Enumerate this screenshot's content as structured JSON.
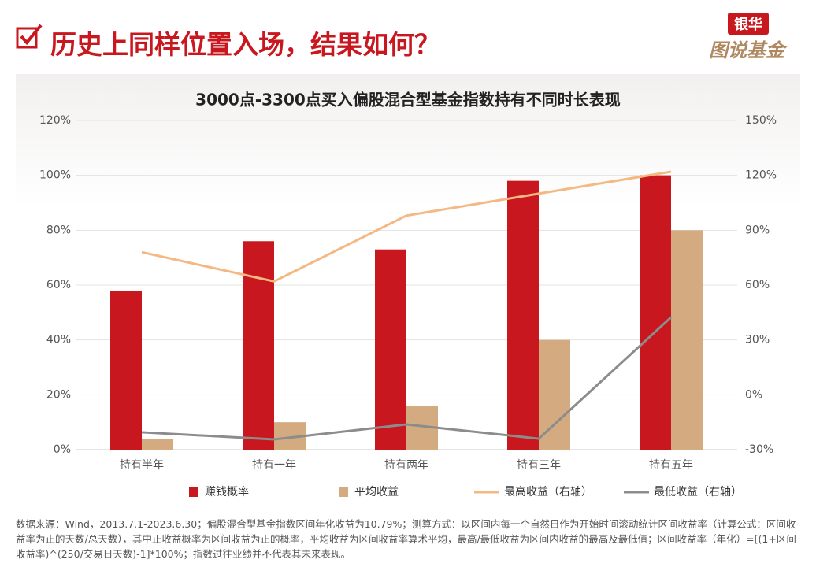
{
  "header": {
    "title": "历史上同样位置入场，结果如何？",
    "logo_top": "银华",
    "logo_bottom": "图说基金"
  },
  "chart_data": {
    "type": "bar",
    "title": "3000点-3300点买入偏股混合型基金指数持有不同时长表现",
    "categories": [
      "持有半年",
      "持有一年",
      "持有两年",
      "持有三年",
      "持有五年"
    ],
    "series": [
      {
        "name": "赚钱概率",
        "type": "bar",
        "color": "#c8171e",
        "values": [
          58,
          76,
          73,
          98,
          100
        ]
      },
      {
        "name": "平均收益",
        "type": "bar",
        "color": "#d4aa80",
        "values": [
          4,
          10,
          16,
          40,
          80
        ]
      },
      {
        "name": "最高收益（右轴）",
        "type": "line",
        "axis": "y2",
        "color": "#f4b983",
        "values": [
          78,
          62,
          98,
          110,
          122
        ]
      },
      {
        "name": "最低收益（右轴）",
        "type": "line",
        "axis": "y2",
        "color": "#8c8c8c",
        "values": [
          -20.5,
          -24.4,
          -16.2,
          -24,
          42.4
        ]
      }
    ],
    "ylim": [
      0,
      120
    ],
    "yticks": [
      {
        "value": 0,
        "label": "0%"
      },
      {
        "value": 20,
        "label": "20%"
      },
      {
        "value": 40,
        "label": "40%"
      },
      {
        "value": 60,
        "label": "60%"
      },
      {
        "value": 80,
        "label": "80%"
      },
      {
        "value": 100,
        "label": "100%"
      },
      {
        "value": 120,
        "label": "120%"
      }
    ],
    "y2lim": [
      -30,
      150
    ],
    "y2ticks": [
      {
        "value": -30,
        "label": "-30%"
      },
      {
        "value": 0,
        "label": "0%"
      },
      {
        "value": 30,
        "label": "30%"
      },
      {
        "value": 60,
        "label": "60%"
      },
      {
        "value": 90,
        "label": "90%"
      },
      {
        "value": 120,
        "label": "120%"
      },
      {
        "value": 150,
        "label": "150%"
      }
    ],
    "grid": true,
    "legend": "bottom"
  },
  "footnote": "数据来源：Wind，2013.7.1-2023.6.30；偏股混合型基金指数区间年化收益为10.79%；测算方式：以区间内每一个自然日作为开始时间滚动统计区间收益率（计算公式：区间收益率为正的天数/总天数），其中正收益概率为区间收益为正的概率，平均收益为区间收益率算术平均，最高/最低收益为区间内收益的最高及最低值；区间收益率（年化）=[(1+区间收益率)^(250/交易日天数)-1]*100%；指数过往业绩并不代表其未来表现。"
}
